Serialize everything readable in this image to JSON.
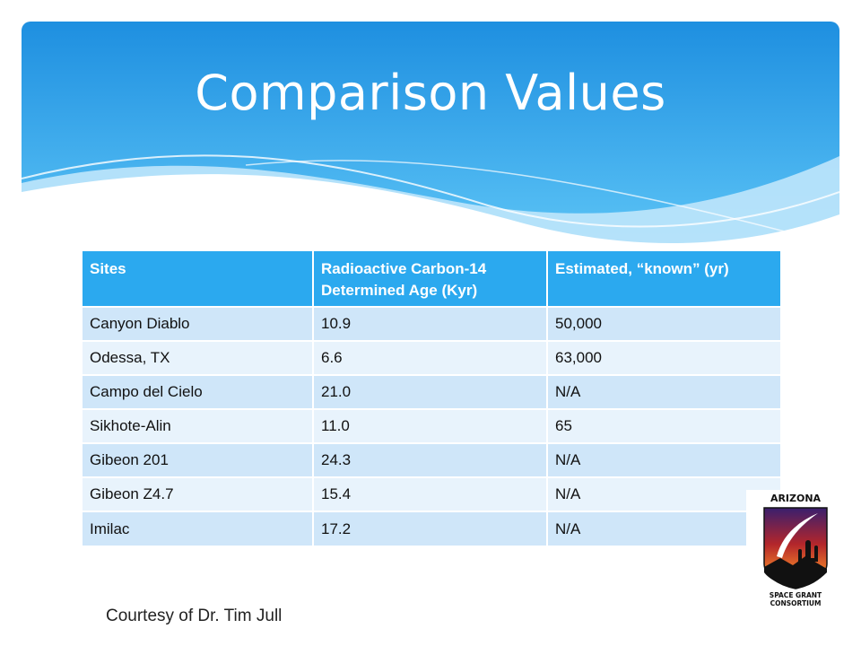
{
  "slide": {
    "title": "Comparison Values",
    "credit": "Courtesy of Dr. Tim Jull"
  },
  "table": {
    "headers": [
      "Sites",
      "Radioactive Carbon-14 Determined Age (Kyr)",
      "Estimated, “known” (yr)"
    ],
    "rows": [
      [
        "Canyon Diablo",
        "10.9",
        "50,000"
      ],
      [
        "Odessa, TX",
        "6.6",
        "63,000"
      ],
      [
        "Campo del Cielo",
        "21.0",
        "N/A"
      ],
      [
        "Sikhote-Alin",
        "11.0",
        "65"
      ],
      [
        "Gibeon 201",
        "24.3",
        "N/A"
      ],
      [
        "Gibeon Z4.7",
        "15.4",
        "N/A"
      ],
      [
        "Imilac",
        "17.2",
        "N/A"
      ]
    ]
  },
  "logo": {
    "top_text": "ARIZONA",
    "bottom_text_1": "SPACE GRANT",
    "bottom_text_2": "CONSORTIUM"
  },
  "colors": {
    "header_blue": "#2ba9ef",
    "row_odd": "#cfe6f9",
    "row_even": "#e8f3fc"
  }
}
